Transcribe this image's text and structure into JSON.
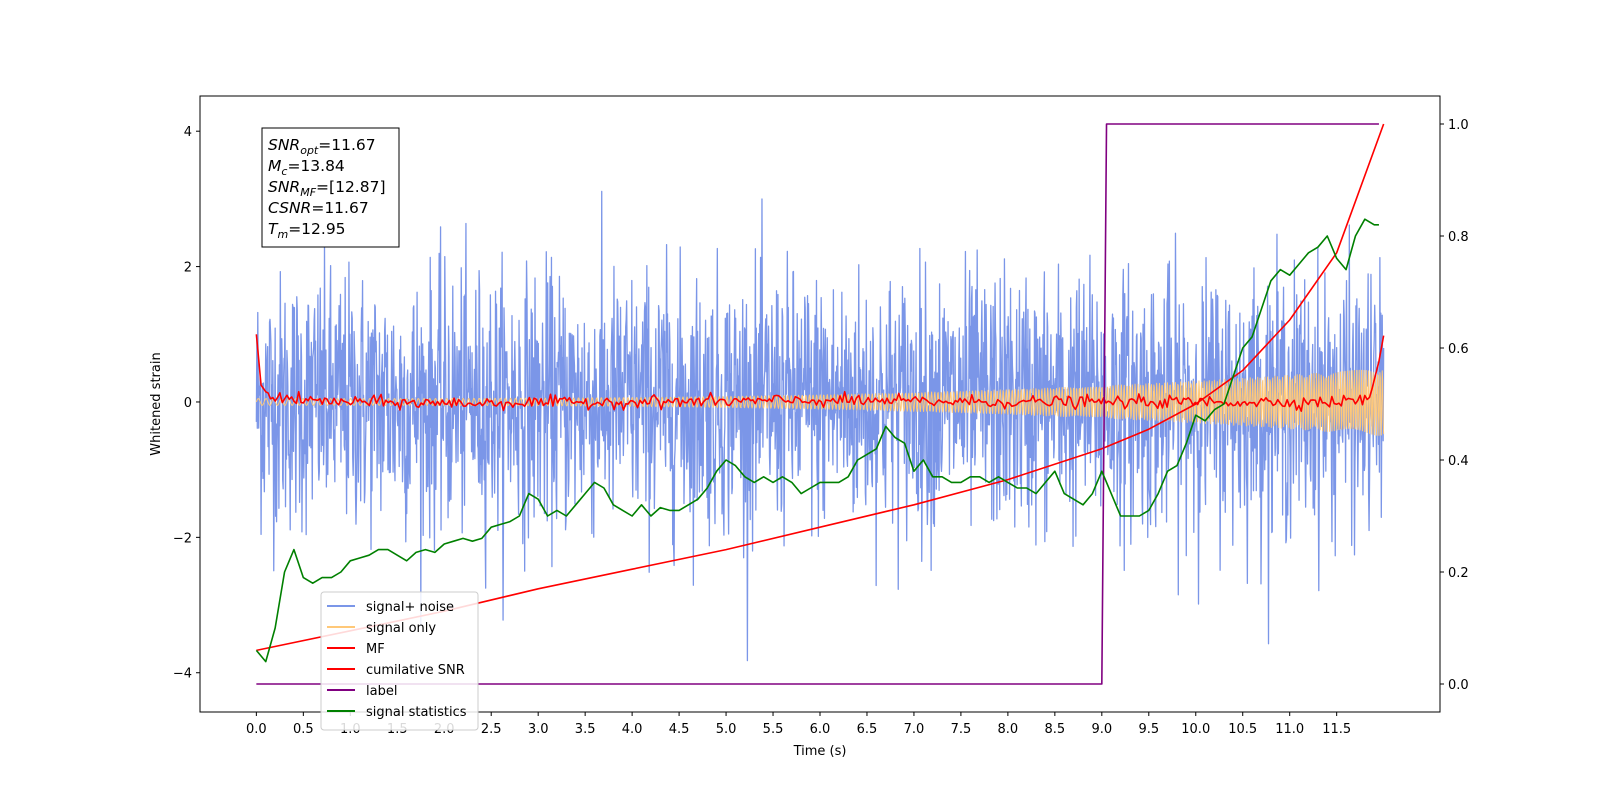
{
  "chart_data": {
    "type": "line",
    "title": "",
    "xlabel": "Time (s)",
    "ylabel": "Whitened strain",
    "y2label": "",
    "xlim": [
      -0.6,
      12.6
    ],
    "ylim": [
      -4.58,
      4.52
    ],
    "y2lim": [
      -0.05,
      1.05
    ],
    "xticks": [
      0.0,
      0.5,
      1.0,
      1.5,
      2.0,
      2.5,
      3.0,
      3.5,
      4.0,
      4.5,
      5.0,
      5.5,
      6.0,
      6.5,
      7.0,
      7.5,
      8.0,
      8.5,
      9.0,
      9.5,
      10.0,
      10.5,
      11.0,
      11.5
    ],
    "xtick_labels": [
      "0.0",
      "0.5",
      "1.0",
      "1.5",
      "2.0",
      "2.5",
      "3.0",
      "3.5",
      "4.0",
      "4.5",
      "5.0",
      "5.5",
      "6.0",
      "6.5",
      "7.0",
      "7.5",
      "8.0",
      "8.5",
      "9.0",
      "9.5",
      "10.0",
      "10.5",
      "11.0",
      "11.5"
    ],
    "yticks": [
      -4,
      -2,
      0,
      2,
      4
    ],
    "ytick_labels": [
      "−4",
      "−2",
      "0",
      "2",
      "4"
    ],
    "y2ticks": [
      0.0,
      0.2,
      0.4,
      0.6,
      0.8,
      1.0
    ],
    "y2tick_labels": [
      "0.0",
      "0.2",
      "0.4",
      "0.6",
      "0.8",
      "1.0"
    ],
    "grid": false,
    "legend_position": "lower-left",
    "annotation": [
      {
        "base": "SNR",
        "sub": "opt",
        "value": "=11.67"
      },
      {
        "base": "M",
        "sub": "c",
        "value": "=13.84"
      },
      {
        "base": "SNR",
        "sub": "MF",
        "value": "=[12.87]"
      },
      {
        "base": "CSNR",
        "sub": "",
        "value": "=11.67"
      },
      {
        "base": "T",
        "sub": "m",
        "value": "=12.95"
      }
    ],
    "series": [
      {
        "name": "signal+ noise",
        "axis": "left",
        "color": "#7b96e8",
        "kind": "noise",
        "description_values": {
          "t_start": 0.0,
          "t_end": 12.0,
          "mean": 0.0,
          "std": 0.95,
          "max": 4.1,
          "min": -4.1
        }
      },
      {
        "name": "signal only",
        "axis": "left",
        "color": "#ffc878",
        "kind": "chirp",
        "description_values": {
          "t_start": 0.0,
          "t_end": 12.0,
          "amp_start": 0.05,
          "amp_end": 0.5
        }
      },
      {
        "name": "MF",
        "axis": "left",
        "color": "#ff0000",
        "kind": "mf",
        "x": [
          0.0,
          0.05,
          0.1,
          0.2,
          0.5,
          1.0,
          2.0,
          4.0,
          6.0,
          8.0,
          10.0,
          11.5,
          11.85,
          11.95,
          12.0
        ],
        "y": [
          1.0,
          0.25,
          0.15,
          0.08,
          0.02,
          0.0,
          -0.02,
          0.0,
          0.02,
          0.0,
          0.0,
          0.0,
          0.05,
          0.6,
          0.98
        ]
      },
      {
        "name": "cumilative SNR",
        "axis": "right",
        "color": "#ff0000",
        "kind": "line",
        "x": [
          0.0,
          1.0,
          2.0,
          3.0,
          4.0,
          5.0,
          6.0,
          7.0,
          8.0,
          9.0,
          9.5,
          10.0,
          10.5,
          11.0,
          11.5,
          12.0
        ],
        "y": [
          0.06,
          0.095,
          0.13,
          0.17,
          0.205,
          0.24,
          0.28,
          0.32,
          0.365,
          0.42,
          0.455,
          0.5,
          0.56,
          0.65,
          0.77,
          1.0
        ]
      },
      {
        "name": "label",
        "axis": "right",
        "color": "#800080",
        "kind": "line",
        "x": [
          0.0,
          9.0,
          9.05,
          11.95
        ],
        "y": [
          0.0,
          0.0,
          1.0,
          1.0
        ]
      },
      {
        "name": "signal statistics",
        "axis": "right",
        "color": "#008000",
        "kind": "line",
        "x": [
          0.0,
          0.1,
          0.2,
          0.3,
          0.35,
          0.4,
          0.5,
          0.6,
          0.7,
          0.8,
          0.9,
          1.0,
          1.1,
          1.2,
          1.3,
          1.4,
          1.5,
          1.6,
          1.7,
          1.8,
          1.9,
          2.0,
          2.1,
          2.2,
          2.3,
          2.4,
          2.5,
          2.6,
          2.7,
          2.8,
          2.9,
          3.0,
          3.1,
          3.2,
          3.3,
          3.4,
          3.5,
          3.6,
          3.7,
          3.8,
          3.9,
          4.0,
          4.1,
          4.2,
          4.3,
          4.4,
          4.5,
          4.6,
          4.7,
          4.8,
          4.9,
          5.0,
          5.1,
          5.2,
          5.3,
          5.4,
          5.5,
          5.6,
          5.7,
          5.8,
          5.9,
          6.0,
          6.1,
          6.2,
          6.3,
          6.4,
          6.5,
          6.6,
          6.7,
          6.8,
          6.9,
          7.0,
          7.1,
          7.2,
          7.3,
          7.4,
          7.5,
          7.6,
          7.7,
          7.8,
          7.9,
          8.0,
          8.1,
          8.2,
          8.3,
          8.4,
          8.5,
          8.6,
          8.7,
          8.8,
          8.9,
          9.0,
          9.1,
          9.2,
          9.3,
          9.4,
          9.5,
          9.6,
          9.7,
          9.8,
          9.9,
          10.0,
          10.1,
          10.2,
          10.3,
          10.4,
          10.5,
          10.6,
          10.7,
          10.8,
          10.9,
          11.0,
          11.1,
          11.2,
          11.3,
          11.4,
          11.5,
          11.6,
          11.7,
          11.8,
          11.9,
          11.95
        ],
        "y": [
          0.06,
          0.04,
          0.1,
          0.2,
          0.22,
          0.24,
          0.19,
          0.18,
          0.19,
          0.19,
          0.2,
          0.22,
          0.225,
          0.23,
          0.24,
          0.24,
          0.23,
          0.22,
          0.235,
          0.24,
          0.235,
          0.25,
          0.255,
          0.26,
          0.255,
          0.26,
          0.28,
          0.285,
          0.29,
          0.3,
          0.34,
          0.33,
          0.3,
          0.31,
          0.3,
          0.32,
          0.34,
          0.36,
          0.35,
          0.32,
          0.31,
          0.3,
          0.32,
          0.3,
          0.315,
          0.31,
          0.31,
          0.32,
          0.33,
          0.35,
          0.38,
          0.4,
          0.39,
          0.37,
          0.36,
          0.37,
          0.36,
          0.37,
          0.36,
          0.34,
          0.35,
          0.36,
          0.36,
          0.36,
          0.37,
          0.4,
          0.41,
          0.42,
          0.46,
          0.44,
          0.43,
          0.38,
          0.4,
          0.37,
          0.37,
          0.36,
          0.36,
          0.37,
          0.37,
          0.36,
          0.37,
          0.36,
          0.35,
          0.35,
          0.34,
          0.36,
          0.38,
          0.34,
          0.33,
          0.32,
          0.34,
          0.38,
          0.34,
          0.3,
          0.3,
          0.3,
          0.31,
          0.34,
          0.38,
          0.39,
          0.43,
          0.48,
          0.47,
          0.49,
          0.5,
          0.55,
          0.6,
          0.62,
          0.67,
          0.72,
          0.74,
          0.73,
          0.75,
          0.77,
          0.78,
          0.8,
          0.76,
          0.74,
          0.8,
          0.83,
          0.82,
          0.82
        ]
      }
    ]
  }
}
